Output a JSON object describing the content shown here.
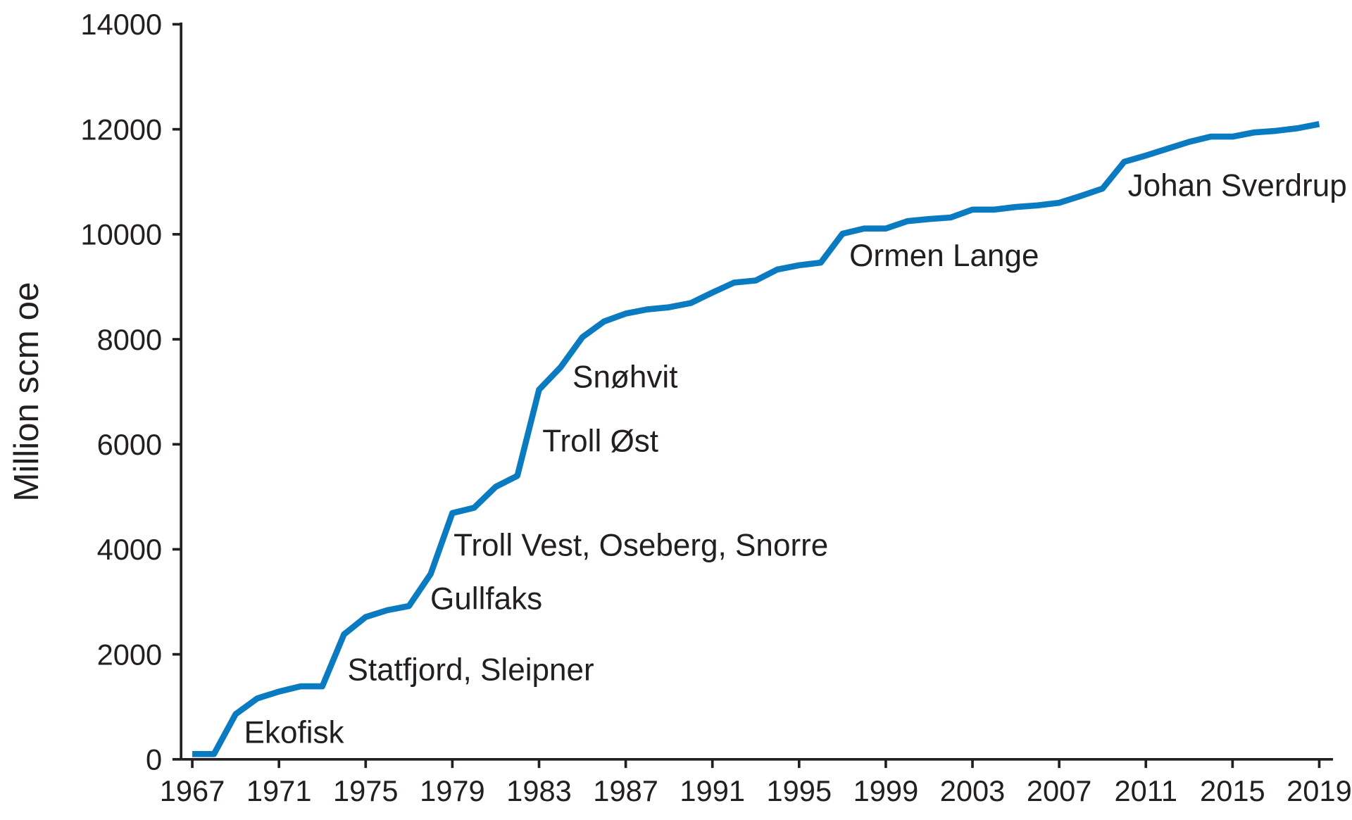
{
  "chart_data": {
    "type": "line",
    "y_label": "Million scm oe",
    "x": [
      1967,
      1968,
      1969,
      1970,
      1971,
      1972,
      1973,
      1974,
      1975,
      1976,
      1977,
      1978,
      1979,
      1980,
      1981,
      1982,
      1983,
      1984,
      1985,
      1986,
      1987,
      1988,
      1989,
      1990,
      1991,
      1992,
      1993,
      1994,
      1995,
      1996,
      1997,
      1998,
      1999,
      2000,
      2001,
      2002,
      2003,
      2004,
      2005,
      2006,
      2007,
      2008,
      2009,
      2010,
      2011,
      2012,
      2013,
      2014,
      2015,
      2016,
      2017,
      2018,
      2019
    ],
    "series": [
      {
        "color": "#0b7bc1",
        "values": [
          100,
          100,
          860,
          1160,
          1290,
          1390,
          1390,
          2380,
          2710,
          2840,
          2920,
          3530,
          4690,
          4790,
          5190,
          5400,
          7040,
          7470,
          8040,
          8340,
          8490,
          8570,
          8610,
          8690,
          8890,
          9080,
          9120,
          9330,
          9410,
          9460,
          10010,
          10110,
          10110,
          10250,
          10290,
          10320,
          10470,
          10470,
          10520,
          10550,
          10600,
          10730,
          10870,
          11380,
          11500,
          11630,
          11760,
          11860,
          11860,
          11940,
          11970,
          12020,
          12100
        ]
      }
    ],
    "annotations": [
      "Ekofisk",
      "Statfjord, Sleipner",
      "Gullfaks",
      "Troll Vest, Oseberg, Snorre",
      "Troll Øst",
      "Snøhvit",
      "Ormen Lange",
      "Johan Sverdrup"
    ],
    "xlim": [
      1967,
      2019
    ],
    "xticks": [
      1967,
      1971,
      1975,
      1979,
      1983,
      1987,
      1991,
      1995,
      1999,
      2003,
      2007,
      2011,
      2015,
      2019
    ],
    "ylim": [
      0,
      14000
    ],
    "yticks": [
      0,
      2000,
      4000,
      6000,
      8000,
      10000,
      12000,
      14000
    ]
  }
}
